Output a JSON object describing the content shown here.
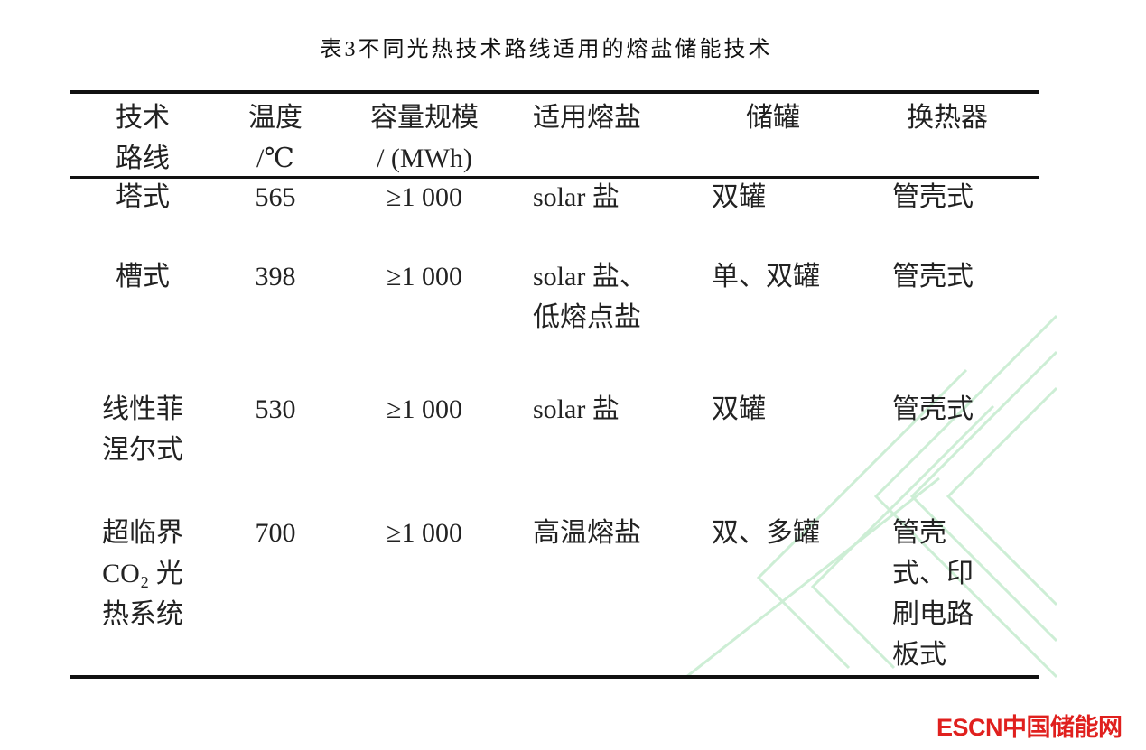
{
  "title": "表3不同光热技术路线适用的熔盐储能技术",
  "table": {
    "headers": [
      [
        "技术",
        "路线"
      ],
      [
        "温度",
        "/℃"
      ],
      [
        "容量规模",
        "/ (MWh)"
      ],
      [
        "适用熔盐"
      ],
      [
        "储罐"
      ],
      [
        "换热器"
      ]
    ],
    "rows": [
      [
        [
          "塔式"
        ],
        [
          "565"
        ],
        [
          "≥1 000"
        ],
        [
          "solar 盐"
        ],
        [
          "双罐"
        ],
        [
          "管壳式"
        ]
      ],
      [
        [
          "槽式"
        ],
        [
          "398"
        ],
        [
          "≥1 000"
        ],
        [
          "solar 盐、",
          "低熔点盐"
        ],
        [
          "单、双罐"
        ],
        [
          "管壳式"
        ]
      ],
      [
        [
          "线性菲",
          "涅尔式"
        ],
        [
          "530"
        ],
        [
          "≥1 000"
        ],
        [
          "solar 盐"
        ],
        [
          "双罐"
        ],
        [
          "管壳式"
        ]
      ],
      [
        [
          "超临界",
          "CO₂ 光",
          "热系统"
        ],
        [
          "700"
        ],
        [
          "≥1 000"
        ],
        [
          "高温熔盐"
        ],
        [
          "双、多罐"
        ],
        [
          "管壳",
          "式、印",
          "刷电路",
          "板式"
        ]
      ]
    ]
  },
  "logo": "ESCN中国储能网",
  "colors": {
    "logo": "#e0201e",
    "watermark": "#c8ecd0"
  }
}
